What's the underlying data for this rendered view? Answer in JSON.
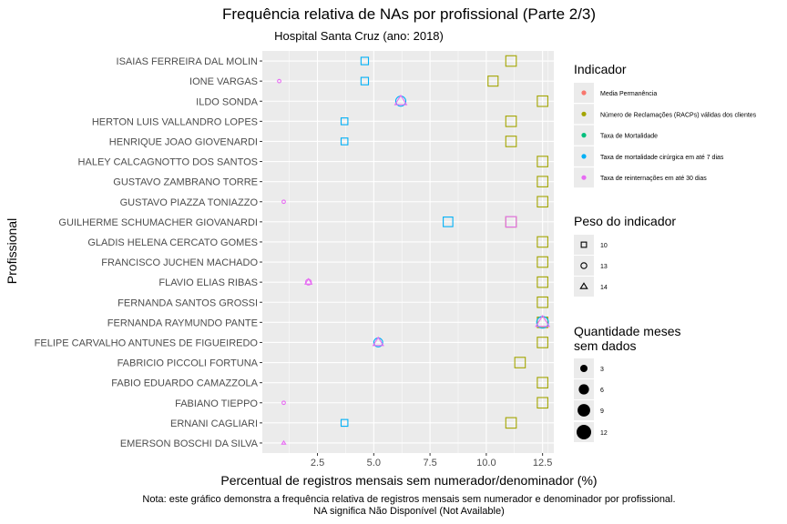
{
  "chart_data": {
    "type": "scatter",
    "title": "Frequência relativa de NAs por profissional (Parte 2/3)",
    "subtitle": "Hospital Santa Cruz (ano: 2018)",
    "xlabel": "Percentual de registros mensais sem numerador/denominador (%)",
    "ylabel": "Profissional",
    "caption_lines": [
      "Nota: este gráfico demonstra a frequência relativa de registros mensais sem numerador e denominador por profissional.",
      "NA significa Não Disponível (Not Available)"
    ],
    "xlim": [
      0.05,
      13.0
    ],
    "x_ticks": [
      2.5,
      5.0,
      7.5,
      10.0,
      12.5
    ],
    "x_tick_labels": [
      "2.5",
      "5.0",
      "7.5",
      "10.0",
      "12.5"
    ],
    "grid": true,
    "categories": [
      "ISAIAS FERREIRA DAL MOLIN",
      "IONE VARGAS",
      "ILDO SONDA",
      "HERTON LUIS VALLANDRO LOPES",
      "HENRIQUE JOAO GIOVENARDI",
      "HALEY CALCAGNOTTO DOS SANTOS",
      "GUSTAVO ZAMBRANO TORRE",
      "GUSTAVO PIAZZA TONIAZZO",
      "GUILHERME SCHUMACHER GIOVANARDI",
      "GLADIS HELENA CERCATO GOMES",
      "FRANCISCO JUCHEN MACHADO",
      "FLAVIO ELIAS RIBAS",
      "FERNANDA SANTOS GROSSI",
      "FERNANDA RAYMUNDO PANTE",
      "FELIPE CARVALHO ANTUNES DE FIGUEIREDO",
      "FABRICIO PICCOLI FORTUNA",
      "FABIO EDUARDO CAMAZZOLA",
      "FABIANO TIEPPO",
      "ERNANI CAGLIARI",
      "EMERSON BOSCHI DA SILVA"
    ],
    "series": [
      {
        "name": "Media Permanência",
        "color": "#F8766D",
        "points": []
      },
      {
        "name": "Número de Reclamações (RACPs) válidas dos clientes",
        "color": "#A3A500",
        "points": [
          {
            "row": "ISAIAS FERREIRA DAL MOLIN",
            "x": 11.1,
            "shape": "square",
            "months": 12
          },
          {
            "row": "IONE VARGAS",
            "x": 10.3,
            "shape": "square",
            "months": 11
          },
          {
            "row": "ILDO SONDA",
            "x": 12.5,
            "shape": "square",
            "months": 12
          },
          {
            "row": "HERTON LUIS VALLANDRO LOPES",
            "x": 11.1,
            "shape": "square",
            "months": 12
          },
          {
            "row": "HENRIQUE JOAO GIOVENARDI",
            "x": 11.1,
            "shape": "square",
            "months": 12
          },
          {
            "row": "HALEY CALCAGNOTTO DOS SANTOS",
            "x": 12.5,
            "shape": "square",
            "months": 12
          },
          {
            "row": "GUSTAVO ZAMBRANO TORRE",
            "x": 12.5,
            "shape": "square",
            "months": 12
          },
          {
            "row": "GUSTAVO PIAZZA TONIAZZO",
            "x": 12.5,
            "shape": "square",
            "months": 12
          },
          {
            "row": "GUILHERME SCHUMACHER GIOVANARDI",
            "x": 11.1,
            "shape": "square",
            "months": 12
          },
          {
            "row": "GLADIS HELENA CERCATO GOMES",
            "x": 12.5,
            "shape": "square",
            "months": 12
          },
          {
            "row": "FRANCISCO JUCHEN MACHADO",
            "x": 12.5,
            "shape": "square",
            "months": 12
          },
          {
            "row": "FLAVIO ELIAS RIBAS",
            "x": 12.5,
            "shape": "square",
            "months": 12
          },
          {
            "row": "FERNANDA SANTOS GROSSI",
            "x": 12.5,
            "shape": "square",
            "months": 12
          },
          {
            "row": "FERNANDA RAYMUNDO PANTE",
            "x": 12.5,
            "shape": "square",
            "months": 12
          },
          {
            "row": "FELIPE CARVALHO ANTUNES DE FIGUEIREDO",
            "x": 12.5,
            "shape": "square",
            "months": 12
          },
          {
            "row": "FABRICIO PICCOLI FORTUNA",
            "x": 11.5,
            "shape": "square",
            "months": 12
          },
          {
            "row": "FABIO EDUARDO CAMAZZOLA",
            "x": 12.5,
            "shape": "square",
            "months": 12
          },
          {
            "row": "FABIANO TIEPPO",
            "x": 12.5,
            "shape": "square",
            "months": 12
          },
          {
            "row": "ERNANI CAGLIARI",
            "x": 11.1,
            "shape": "square",
            "months": 12
          }
        ]
      },
      {
        "name": "Taxa de Mortalidade",
        "color": "#00BF7D",
        "points": []
      },
      {
        "name": "Taxa de mortalidade cirúrgica em até 7 dias",
        "color": "#00B0F6",
        "points": [
          {
            "row": "ISAIAS FERREIRA DAL MOLIN",
            "x": 4.6,
            "shape": "square",
            "months": 6
          },
          {
            "row": "IONE VARGAS",
            "x": 4.6,
            "shape": "square",
            "months": 6
          },
          {
            "row": "ILDO SONDA",
            "x": 6.2,
            "shape": "circle",
            "months": 9
          },
          {
            "row": "HERTON LUIS VALLANDRO LOPES",
            "x": 3.7,
            "shape": "square",
            "months": 5
          },
          {
            "row": "HENRIQUE JOAO GIOVENARDI",
            "x": 3.7,
            "shape": "square",
            "months": 5
          },
          {
            "row": "GUILHERME SCHUMACHER GIOVANARDI",
            "x": 8.3,
            "shape": "square",
            "months": 10
          },
          {
            "row": "FERNANDA RAYMUNDO PANTE",
            "x": 12.5,
            "shape": "circle",
            "months": 12
          },
          {
            "row": "FELIPE CARVALHO ANTUNES DE FIGUEIREDO",
            "x": 5.2,
            "shape": "circle",
            "months": 7
          },
          {
            "row": "ERNANI CAGLIARI",
            "x": 3.7,
            "shape": "square",
            "months": 5
          }
        ]
      },
      {
        "name": "Taxa de reinternações em até 30 dias",
        "color": "#E76BF3",
        "points": [
          {
            "row": "IONE VARGAS",
            "x": 0.8,
            "shape": "circle",
            "months": 1
          },
          {
            "row": "ILDO SONDA",
            "x": 6.2,
            "shape": "triangle",
            "months": 9
          },
          {
            "row": "GUSTAVO PIAZZA TONIAZZO",
            "x": 1.0,
            "shape": "circle",
            "months": 1
          },
          {
            "row": "GUILHERME SCHUMACHER GIOVANARDI",
            "x": 11.1,
            "shape": "square",
            "months": 12
          },
          {
            "row": "FLAVIO ELIAS RIBAS",
            "x": 2.1,
            "shape": "circle",
            "months": 3
          },
          {
            "row": "FLAVIO ELIAS RIBAS",
            "x": 2.1,
            "shape": "triangle",
            "months": 3
          },
          {
            "row": "FERNANDA RAYMUNDO PANTE",
            "x": 12.5,
            "shape": "triangle",
            "months": 12
          },
          {
            "row": "FELIPE CARVALHO ANTUNES DE FIGUEIREDO",
            "x": 5.2,
            "shape": "triangle",
            "months": 7
          },
          {
            "row": "FABIANO TIEPPO",
            "x": 1.0,
            "shape": "circle",
            "months": 1
          },
          {
            "row": "EMERSON BOSCHI DA SILVA",
            "x": 1.0,
            "shape": "triangle",
            "months": 1
          }
        ]
      }
    ],
    "legend": {
      "placement": "right",
      "color_title": "Indicador",
      "shape_title": "Peso do indicador",
      "shape_items": [
        {
          "label": "10",
          "shape": "square"
        },
        {
          "label": "13",
          "shape": "circle"
        },
        {
          "label": "14",
          "shape": "triangle"
        }
      ],
      "size_title_lines": [
        "Quantidade meses",
        "sem dados"
      ],
      "size_items": [
        {
          "label": "3",
          "months": 3
        },
        {
          "label": "6",
          "months": 6
        },
        {
          "label": "9",
          "months": 9
        },
        {
          "label": "12",
          "months": 12
        }
      ]
    }
  }
}
